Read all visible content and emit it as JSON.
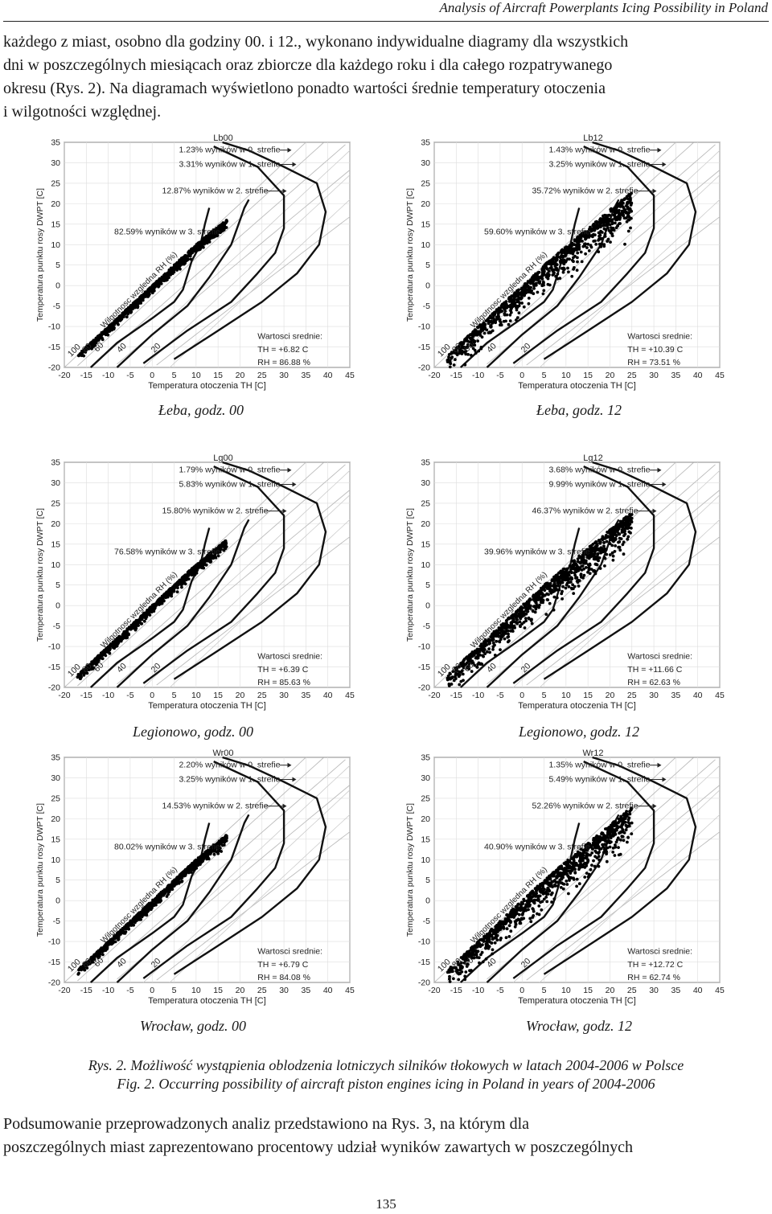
{
  "header": {
    "running_title": "Analysis of Aircraft Powerplants Icing Possibility in Poland"
  },
  "intro_paragraph": [
    "każdego z miast, osobno dla godziny 00. i 12., wykonano indywidualne diagramy dla wszystkich",
    "dni w poszczególnych miesiącach oraz zbiorcze dla każdego roku i dla całego rozpatrywanego",
    "okresu (Rys. 2). Na diagramach wyświetlono ponadto wartości średnie temperatury otoczenia",
    "i wilgotności względnej."
  ],
  "shared_axes": {
    "ylabel": "Temperatura punktu rosy DWPT [C]",
    "xlabel": "Temperatura otoczenia TH [C]",
    "x_ticks": [
      "-20",
      "-15",
      "-10",
      "-5",
      "0",
      "5",
      "10",
      "15",
      "20",
      "25",
      "30",
      "35",
      "40",
      "45"
    ],
    "y_ticks": [
      "35",
      "30",
      "25",
      "20",
      "15",
      "10",
      "5",
      "0",
      "-5",
      "-10",
      "-15",
      "-20"
    ],
    "rh_line_label": "Wilgotnosc wzgledna RH (%)",
    "rh_labels": [
      "100",
      "80",
      "60",
      "40",
      "20"
    ],
    "means_heading": "Wartosci srednie:",
    "th_prefix": "TH =",
    "rh_prefix": "RH ="
  },
  "chart_data": [
    {
      "type": "scatter",
      "title": "Lb00",
      "caption": "Łeba, godz. 00",
      "zones": [
        "1.23% wyników w 0. strefie",
        "3.31% wyników w 1. strefie",
        "12.87% wyników w 2. strefie",
        "82.59% wyników w 3. strefie"
      ],
      "mean_th": "+6.82 C",
      "mean_rh": "86.88 %",
      "xlim": [
        -20,
        45
      ],
      "ylim": [
        -20,
        35
      ],
      "grid": true
    },
    {
      "type": "scatter",
      "title": "Lb12",
      "caption": "Łeba, godz. 12",
      "zones": [
        "1.43% wyników w 0. strefie",
        "3.25% wyników w 1. strefie",
        "35.72% wyników w 2. strefie",
        "59.60% wyników w 3. strefie"
      ],
      "mean_th": "+10.39 C",
      "mean_rh": "73.51 %",
      "xlim": [
        -20,
        45
      ],
      "ylim": [
        -20,
        35
      ],
      "grid": true
    },
    {
      "type": "scatter",
      "title": "Lg00",
      "caption": "Legionowo, godz. 00",
      "zones": [
        "1.79% wyników w 0. strefie",
        "5.83% wyników w 1. strefie",
        "15.80% wyników w 2. strefie",
        "76.58% wyników w 3. strefie"
      ],
      "mean_th": "+6.39 C",
      "mean_rh": "85.63 %",
      "xlim": [
        -20,
        45
      ],
      "ylim": [
        -20,
        35
      ],
      "grid": true
    },
    {
      "type": "scatter",
      "title": "Lg12",
      "caption": "Legionowo, godz. 12",
      "zones": [
        "3.68% wyników w 0. strefie",
        "9.99% wyników w 1. strefie",
        "46.37% wyników w 2. strefie",
        "39.96% wyników w 3. strefie"
      ],
      "mean_th": "+11.66 C",
      "mean_rh": "62.63 %",
      "xlim": [
        -20,
        45
      ],
      "ylim": [
        -20,
        35
      ],
      "grid": true
    },
    {
      "type": "scatter",
      "title": "Wr00",
      "caption": "Wrocław, godz. 00",
      "zones": [
        "2.20% wyników w 0. strefie",
        "3.25% wyników w 1. strefie",
        "14.53% wyników w 2. strefie",
        "80.02% wyników w 3. strefie"
      ],
      "mean_th": "+6.79 C",
      "mean_rh": "84.08 %",
      "xlim": [
        -20,
        45
      ],
      "ylim": [
        -20,
        35
      ],
      "grid": true
    },
    {
      "type": "scatter",
      "title": "Wr12",
      "caption": "Wrocław, godz. 12",
      "zones": [
        "1.35% wyników w 0. strefie",
        "5.49% wyników w 1. strefie",
        "52.26% wyników w 2. strefie",
        "40.90% wyników w 3. strefie"
      ],
      "mean_th": "+12.72 C",
      "mean_rh": "62.74 %",
      "xlim": [
        -20,
        45
      ],
      "ylim": [
        -20,
        35
      ],
      "grid": true
    }
  ],
  "figure_caption": {
    "pl": "Rys. 2. Możliwość wystąpienia oblodzenia lotniczych silników tłokowych w latach 2004-2006 w Polsce",
    "en": "Fig. 2. Occurring possibility of aircraft piston engines icing in Poland in years of 2004-2006"
  },
  "summary_paragraph": [
    "Podsumowanie przeprowadzonych analiz przedstawiono na Rys. 3, na którym dla",
    "poszczególnych miast zaprezentowano procentowy udział wyników zawartych w poszczególnych"
  ],
  "page_number": "135"
}
